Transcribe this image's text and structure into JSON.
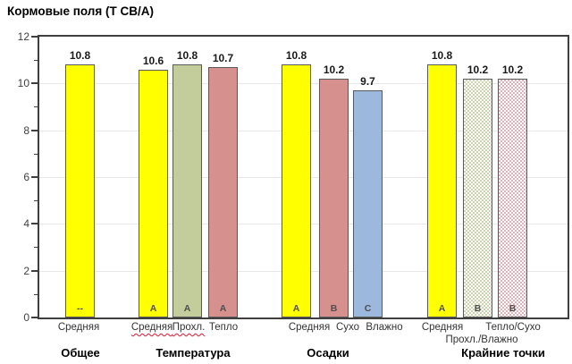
{
  "chart_data": {
    "type": "bar",
    "title": "Кормовые поля (Т СВ/А)",
    "xlabel": "",
    "ylabel": "",
    "ylim": [
      0,
      12
    ],
    "yticks": [
      0,
      2,
      4,
      6,
      8,
      10,
      12
    ],
    "grid": "horizontal major gridlines, light gray; minor y-ticks at odd values",
    "legend": "none",
    "groups": [
      {
        "name": "Общее",
        "bars": [
          {
            "category": "Средняя",
            "value": 10.8,
            "letter": "--",
            "color_key": "yellow"
          }
        ]
      },
      {
        "name": "Температура",
        "bars": [
          {
            "category": "Средняя",
            "value": 10.6,
            "letter": "A",
            "color_key": "yellow",
            "spellcheck_underline": true
          },
          {
            "category": "Прохл.",
            "value": 10.8,
            "letter": "A",
            "color_key": "green",
            "spellcheck_underline": true
          },
          {
            "category": "Тепло",
            "value": 10.7,
            "letter": "A",
            "color_key": "rose"
          }
        ]
      },
      {
        "name": "Осадки",
        "bars": [
          {
            "category": "Средняя",
            "value": 10.8,
            "letter": "A",
            "color_key": "yellow"
          },
          {
            "category": "Сухо",
            "value": 10.2,
            "letter": "B",
            "color_key": "rose"
          },
          {
            "category": "Влажно",
            "value": 9.7,
            "letter": "C",
            "color_key": "blue"
          }
        ]
      },
      {
        "name": "Крайние точки",
        "bars": [
          {
            "category": "Средняя",
            "value": 10.8,
            "letter": "A",
            "color_key": "yellow"
          },
          {
            "category": "Прохл./Влажно",
            "value": 10.2,
            "letter": "B",
            "color_key": "green_pattern"
          },
          {
            "category": "Тепло/Сухо",
            "value": 10.2,
            "letter": "B",
            "color_key": "rose_pattern"
          }
        ]
      }
    ],
    "colors": {
      "yellow": "#FFFF00",
      "green": "#C3CD9B",
      "rose": "#D6908E",
      "blue": "#9CB8DD",
      "green_pattern": "#CBD5AB",
      "rose_pattern": "#E2B0B8",
      "bar_border": "#595959",
      "axis": "#3F3F3F",
      "gridline": "#E7E7E7",
      "spellcheck_red": "#E8112D"
    }
  }
}
